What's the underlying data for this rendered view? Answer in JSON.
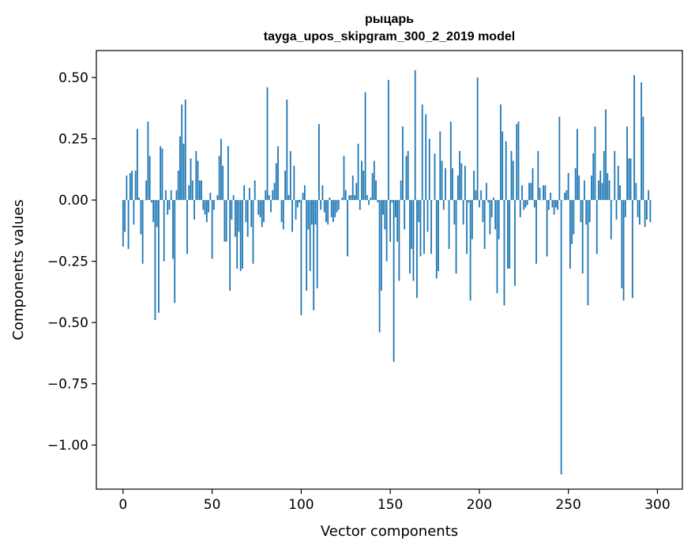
{
  "chart_data": {
    "type": "bar",
    "title": "рыцарь",
    "subtitle": "tayga_upos_skipgram_300_2_2019 model",
    "xlabel": "Vector components",
    "ylabel": "Components values",
    "xlim": [
      -15,
      314
    ],
    "ylim": [
      -1.18,
      0.61
    ],
    "xticks": [
      0,
      50,
      100,
      150,
      200,
      250,
      300
    ],
    "xtick_labels": [
      "0",
      "50",
      "100",
      "150",
      "200",
      "250",
      "300"
    ],
    "yticks": [
      -1.0,
      -0.75,
      -0.5,
      -0.25,
      0.0,
      0.25,
      0.5
    ],
    "ytick_labels": [
      "−1.00",
      "−0.75",
      "−0.50",
      "−0.25",
      "0.00",
      "0.25",
      "0.50"
    ],
    "bar_color": "#1f77b4",
    "grid": false,
    "values": [
      -0.19,
      -0.13,
      0.1,
      -0.2,
      0.11,
      0.12,
      -0.1,
      0.12,
      0.29,
      0.01,
      -0.14,
      -0.26,
      0.0,
      0.08,
      0.32,
      0.18,
      -0.01,
      -0.09,
      -0.49,
      -0.11,
      -0.46,
      0.22,
      0.21,
      -0.25,
      0.04,
      -0.06,
      -0.04,
      0.04,
      -0.24,
      -0.42,
      0.04,
      0.12,
      0.26,
      0.39,
      0.23,
      0.41,
      -0.22,
      0.06,
      0.17,
      0.08,
      -0.08,
      0.2,
      0.16,
      0.08,
      0.08,
      -0.04,
      -0.06,
      -0.09,
      -0.05,
      0.03,
      -0.24,
      -0.04,
      0.0,
      0.02,
      0.18,
      0.25,
      0.14,
      -0.17,
      -0.17,
      0.22,
      -0.37,
      -0.08,
      0.02,
      -0.15,
      -0.28,
      -0.13,
      -0.29,
      -0.28,
      0.06,
      -0.09,
      -0.15,
      0.05,
      -0.11,
      -0.26,
      0.08,
      0.0,
      -0.06,
      -0.07,
      -0.11,
      -0.09,
      0.04,
      0.46,
      0.02,
      -0.05,
      0.04,
      0.07,
      0.15,
      0.22,
      0.0,
      -0.09,
      -0.12,
      0.12,
      0.41,
      0.02,
      0.2,
      -0.13,
      0.14,
      -0.08,
      -0.03,
      -0.01,
      -0.47,
      0.03,
      0.06,
      -0.37,
      -0.12,
      -0.29,
      -0.1,
      -0.45,
      -0.1,
      -0.36,
      0.31,
      -0.04,
      0.06,
      -0.05,
      -0.09,
      -0.1,
      0.01,
      -0.07,
      -0.09,
      -0.07,
      -0.05,
      -0.04,
      0.0,
      0.01,
      0.18,
      0.04,
      -0.23,
      0.02,
      0.02,
      0.1,
      0.02,
      0.07,
      0.23,
      -0.04,
      0.16,
      0.12,
      0.44,
      0.02,
      -0.02,
      0.01,
      0.11,
      0.16,
      0.08,
      -0.01,
      -0.54,
      -0.37,
      -0.06,
      -0.12,
      -0.25,
      0.49,
      -0.17,
      -0.01,
      -0.66,
      -0.07,
      -0.17,
      -0.33,
      0.08,
      0.3,
      -0.12,
      0.18,
      0.2,
      -0.3,
      -0.2,
      -0.33,
      0.53,
      -0.4,
      -0.09,
      -0.23,
      0.39,
      -0.22,
      0.35,
      -0.13,
      0.25,
      -0.22,
      0.0,
      0.19,
      -0.32,
      -0.29,
      0.28,
      0.16,
      -0.04,
      0.13,
      0.0,
      -0.2,
      0.32,
      0.13,
      -0.1,
      -0.3,
      0.1,
      0.2,
      0.15,
      -0.1,
      0.14,
      -0.22,
      -0.01,
      -0.41,
      -0.16,
      0.12,
      0.04,
      0.5,
      -0.03,
      0.04,
      -0.09,
      -0.2,
      0.07,
      -0.01,
      -0.14,
      -0.07,
      0.01,
      -0.12,
      -0.38,
      -0.16,
      0.39,
      0.28,
      -0.43,
      0.24,
      -0.28,
      -0.28,
      0.2,
      0.16,
      -0.35,
      0.31,
      0.32,
      -0.07,
      0.06,
      -0.04,
      -0.03,
      -0.02,
      0.07,
      0.07,
      0.13,
      -0.03,
      -0.26,
      0.2,
      0.05,
      0.0,
      0.06,
      0.06,
      -0.23,
      -0.04,
      0.03,
      -0.03,
      -0.06,
      -0.03,
      -0.04,
      0.34,
      -1.12,
      0.0,
      0.03,
      0.04,
      0.11,
      -0.28,
      -0.18,
      -0.14,
      0.13,
      0.29,
      0.1,
      -0.09,
      -0.3,
      0.08,
      -0.1,
      -0.43,
      -0.09,
      0.1,
      0.19,
      0.3,
      -0.22,
      0.08,
      0.12,
      0.07,
      0.2,
      0.37,
      0.11,
      0.08,
      -0.16,
      0.0,
      0.2,
      -0.08,
      0.14,
      0.06,
      -0.36,
      -0.41,
      -0.07,
      0.3,
      0.17,
      0.17,
      -0.4,
      0.51,
      0.07,
      -0.07,
      -0.1,
      0.48,
      0.34,
      -0.11,
      -0.08,
      0.04,
      -0.09
    ]
  }
}
